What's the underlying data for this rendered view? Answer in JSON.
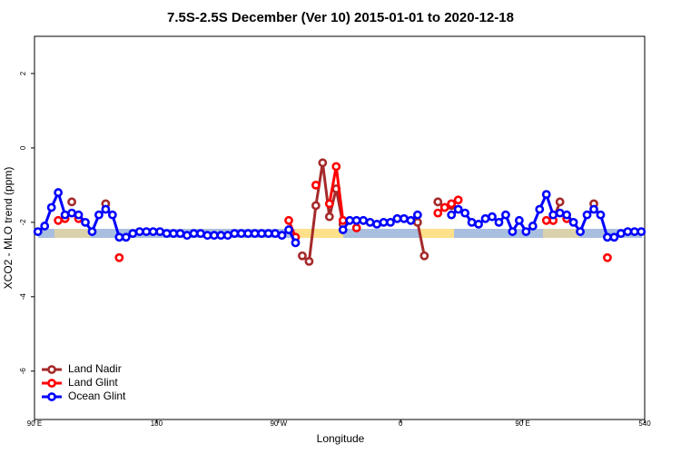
{
  "chart_data": {
    "type": "line",
    "title": "7.5S-2.5S December (Ver 10)   2015-01-01 to 2020-12-18",
    "x_label": "Longitude",
    "y_label": "XCO2 - MLO trend (ppm)",
    "xlim": [
      90,
      540
    ],
    "ylim": [
      -7.3,
      3
    ],
    "xticks": [
      {
        "value": 90,
        "label": "90 E"
      },
      180,
      {
        "value": 270,
        "label": "90 W"
      },
      {
        "value": 360,
        "label": "0"
      },
      {
        "value": 450,
        "label": "90 E"
      },
      540
    ],
    "yticks": [
      -6,
      -4,
      -2,
      0,
      2
    ],
    "legend": "bottomleft",
    "x": [
      92.5,
      97.5,
      102.5,
      107.5,
      112.5,
      117.5,
      122.5,
      127.5,
      132.5,
      137.5,
      142.5,
      147.5,
      152.5,
      157.5,
      162.5,
      167.5,
      172.5,
      177.5,
      182.5,
      187.5,
      192.5,
      197.5,
      202.5,
      207.5,
      212.5,
      217.5,
      222.5,
      227.5,
      232.5,
      237.5,
      242.5,
      247.5,
      252.5,
      257.5,
      262.5,
      267.5,
      272.5,
      277.5,
      282.5,
      287.5,
      292.5,
      297.5,
      302.5,
      307.5,
      312.5,
      317.5,
      322.5,
      327.5,
      332.5,
      337.5,
      342.5,
      347.5,
      352.5,
      357.5,
      362.5,
      367.5,
      372.5,
      377.5,
      382.5,
      387.5,
      392.5,
      397.5,
      402.5,
      407.5,
      412.5,
      417.5,
      422.5,
      427.5,
      432.5,
      437.5,
      442.5,
      447.5,
      452.5,
      457.5,
      462.5,
      467.5,
      472.5,
      477.5,
      482.5,
      487.5,
      492.5,
      497.5,
      502.5,
      507.5,
      512.5,
      517.5,
      522.5,
      527.5,
      532.5,
      537.5
    ],
    "series": [
      {
        "name": "Land Nadir",
        "color": "#a52a2a",
        "values": [
          null,
          null,
          null,
          null,
          null,
          -1.45,
          null,
          null,
          null,
          null,
          -1.5,
          null,
          null,
          null,
          null,
          null,
          null,
          null,
          null,
          null,
          null,
          null,
          null,
          null,
          null,
          null,
          null,
          null,
          null,
          null,
          null,
          null,
          null,
          null,
          null,
          null,
          null,
          null,
          null,
          -2.9,
          -3.05,
          -1.55,
          -0.4,
          -1.85,
          -1.1,
          -2.05,
          null,
          null,
          null,
          null,
          null,
          null,
          null,
          null,
          null,
          null,
          -2.0,
          -2.9,
          null,
          -1.45,
          -1.6,
          -1.55,
          null,
          null,
          null,
          null,
          null,
          null,
          null,
          null,
          null,
          null,
          null,
          null,
          null,
          null,
          -1.95,
          -1.45,
          null,
          null,
          null,
          null,
          -1.5,
          null,
          null,
          null,
          null,
          null,
          null,
          null
        ]
      },
      {
        "name": "Land Glint",
        "color": "#ff0000",
        "values": [
          null,
          null,
          null,
          -1.95,
          -1.9,
          null,
          -1.9,
          null,
          null,
          null,
          null,
          null,
          -2.95,
          null,
          null,
          null,
          null,
          null,
          null,
          null,
          null,
          null,
          null,
          null,
          null,
          null,
          null,
          null,
          null,
          null,
          null,
          null,
          null,
          null,
          null,
          null,
          null,
          -1.95,
          -2.4,
          null,
          null,
          -1.0,
          null,
          -1.5,
          -0.5,
          -1.95,
          null,
          -2.15,
          null,
          null,
          null,
          null,
          null,
          null,
          null,
          null,
          null,
          null,
          null,
          -1.75,
          -1.6,
          -1.5,
          -1.4,
          null,
          null,
          null,
          null,
          null,
          null,
          null,
          null,
          null,
          null,
          null,
          null,
          -1.95,
          -1.95,
          null,
          -1.9,
          null,
          null,
          null,
          null,
          null,
          -2.95,
          null,
          null,
          null,
          null,
          null
        ]
      },
      {
        "name": "Ocean Glint",
        "color": "#0000ff",
        "values": [
          -2.25,
          -2.1,
          -1.6,
          -1.2,
          -1.8,
          -1.75,
          -1.8,
          -2.0,
          -2.25,
          -1.8,
          -1.65,
          -1.8,
          -2.4,
          -2.4,
          -2.3,
          -2.25,
          -2.25,
          -2.25,
          -2.25,
          -2.3,
          -2.3,
          -2.3,
          -2.35,
          -2.3,
          -2.3,
          -2.35,
          -2.35,
          -2.35,
          -2.35,
          -2.3,
          -2.3,
          -2.3,
          -2.3,
          -2.3,
          -2.3,
          -2.3,
          -2.35,
          -2.2,
          -2.55,
          null,
          null,
          null,
          null,
          null,
          null,
          -2.2,
          -1.95,
          -1.95,
          -1.95,
          -2.0,
          -2.05,
          -2.0,
          -2.0,
          -1.9,
          -1.9,
          -1.95,
          -1.8,
          null,
          null,
          null,
          null,
          -1.8,
          -1.65,
          -1.75,
          -2.0,
          -2.05,
          -1.9,
          -1.85,
          -2.0,
          -1.8,
          -2.25,
          -1.95,
          -2.25,
          -2.1,
          -1.65,
          -1.25,
          -1.8,
          -1.75,
          -1.8,
          -2.0,
          -2.25,
          -1.8,
          -1.65,
          -1.8,
          -2.4,
          -2.4,
          -2.3,
          -2.25,
          -2.25,
          -2.25
        ]
      }
    ]
  }
}
